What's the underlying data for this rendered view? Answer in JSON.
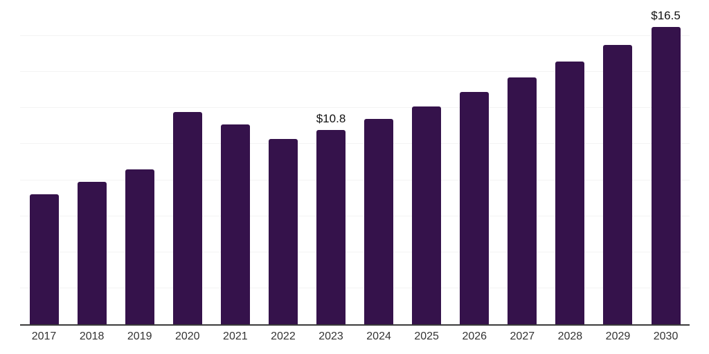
{
  "chart_data": {
    "type": "bar",
    "title": "",
    "xlabel": "",
    "ylabel": "",
    "categories": [
      "2017",
      "2018",
      "2019",
      "2020",
      "2021",
      "2022",
      "2023",
      "2024",
      "2025",
      "2026",
      "2027",
      "2028",
      "2029",
      "2030"
    ],
    "values": [
      7.2,
      7.9,
      8.6,
      11.8,
      11.1,
      10.3,
      10.8,
      11.4,
      12.1,
      12.9,
      13.7,
      14.6,
      15.5,
      16.5
    ],
    "bar_labels": [
      "",
      "",
      "",
      "",
      "",
      "",
      "$10.8",
      "",
      "",
      "",
      "",
      "",
      "",
      "$16.5"
    ],
    "ylim": [
      0,
      18
    ],
    "grid_step": 2,
    "grid": true,
    "legend": false,
    "y_axis_labels_visible": false,
    "colors": {
      "bar": "#35124B",
      "gridline": "#f3f3f3",
      "top_gridline": "#e8e8e8",
      "axis": "#3a3a3a",
      "bar_label_text": "#111111",
      "tick_text": "#333333",
      "background": "#ffffff"
    }
  }
}
